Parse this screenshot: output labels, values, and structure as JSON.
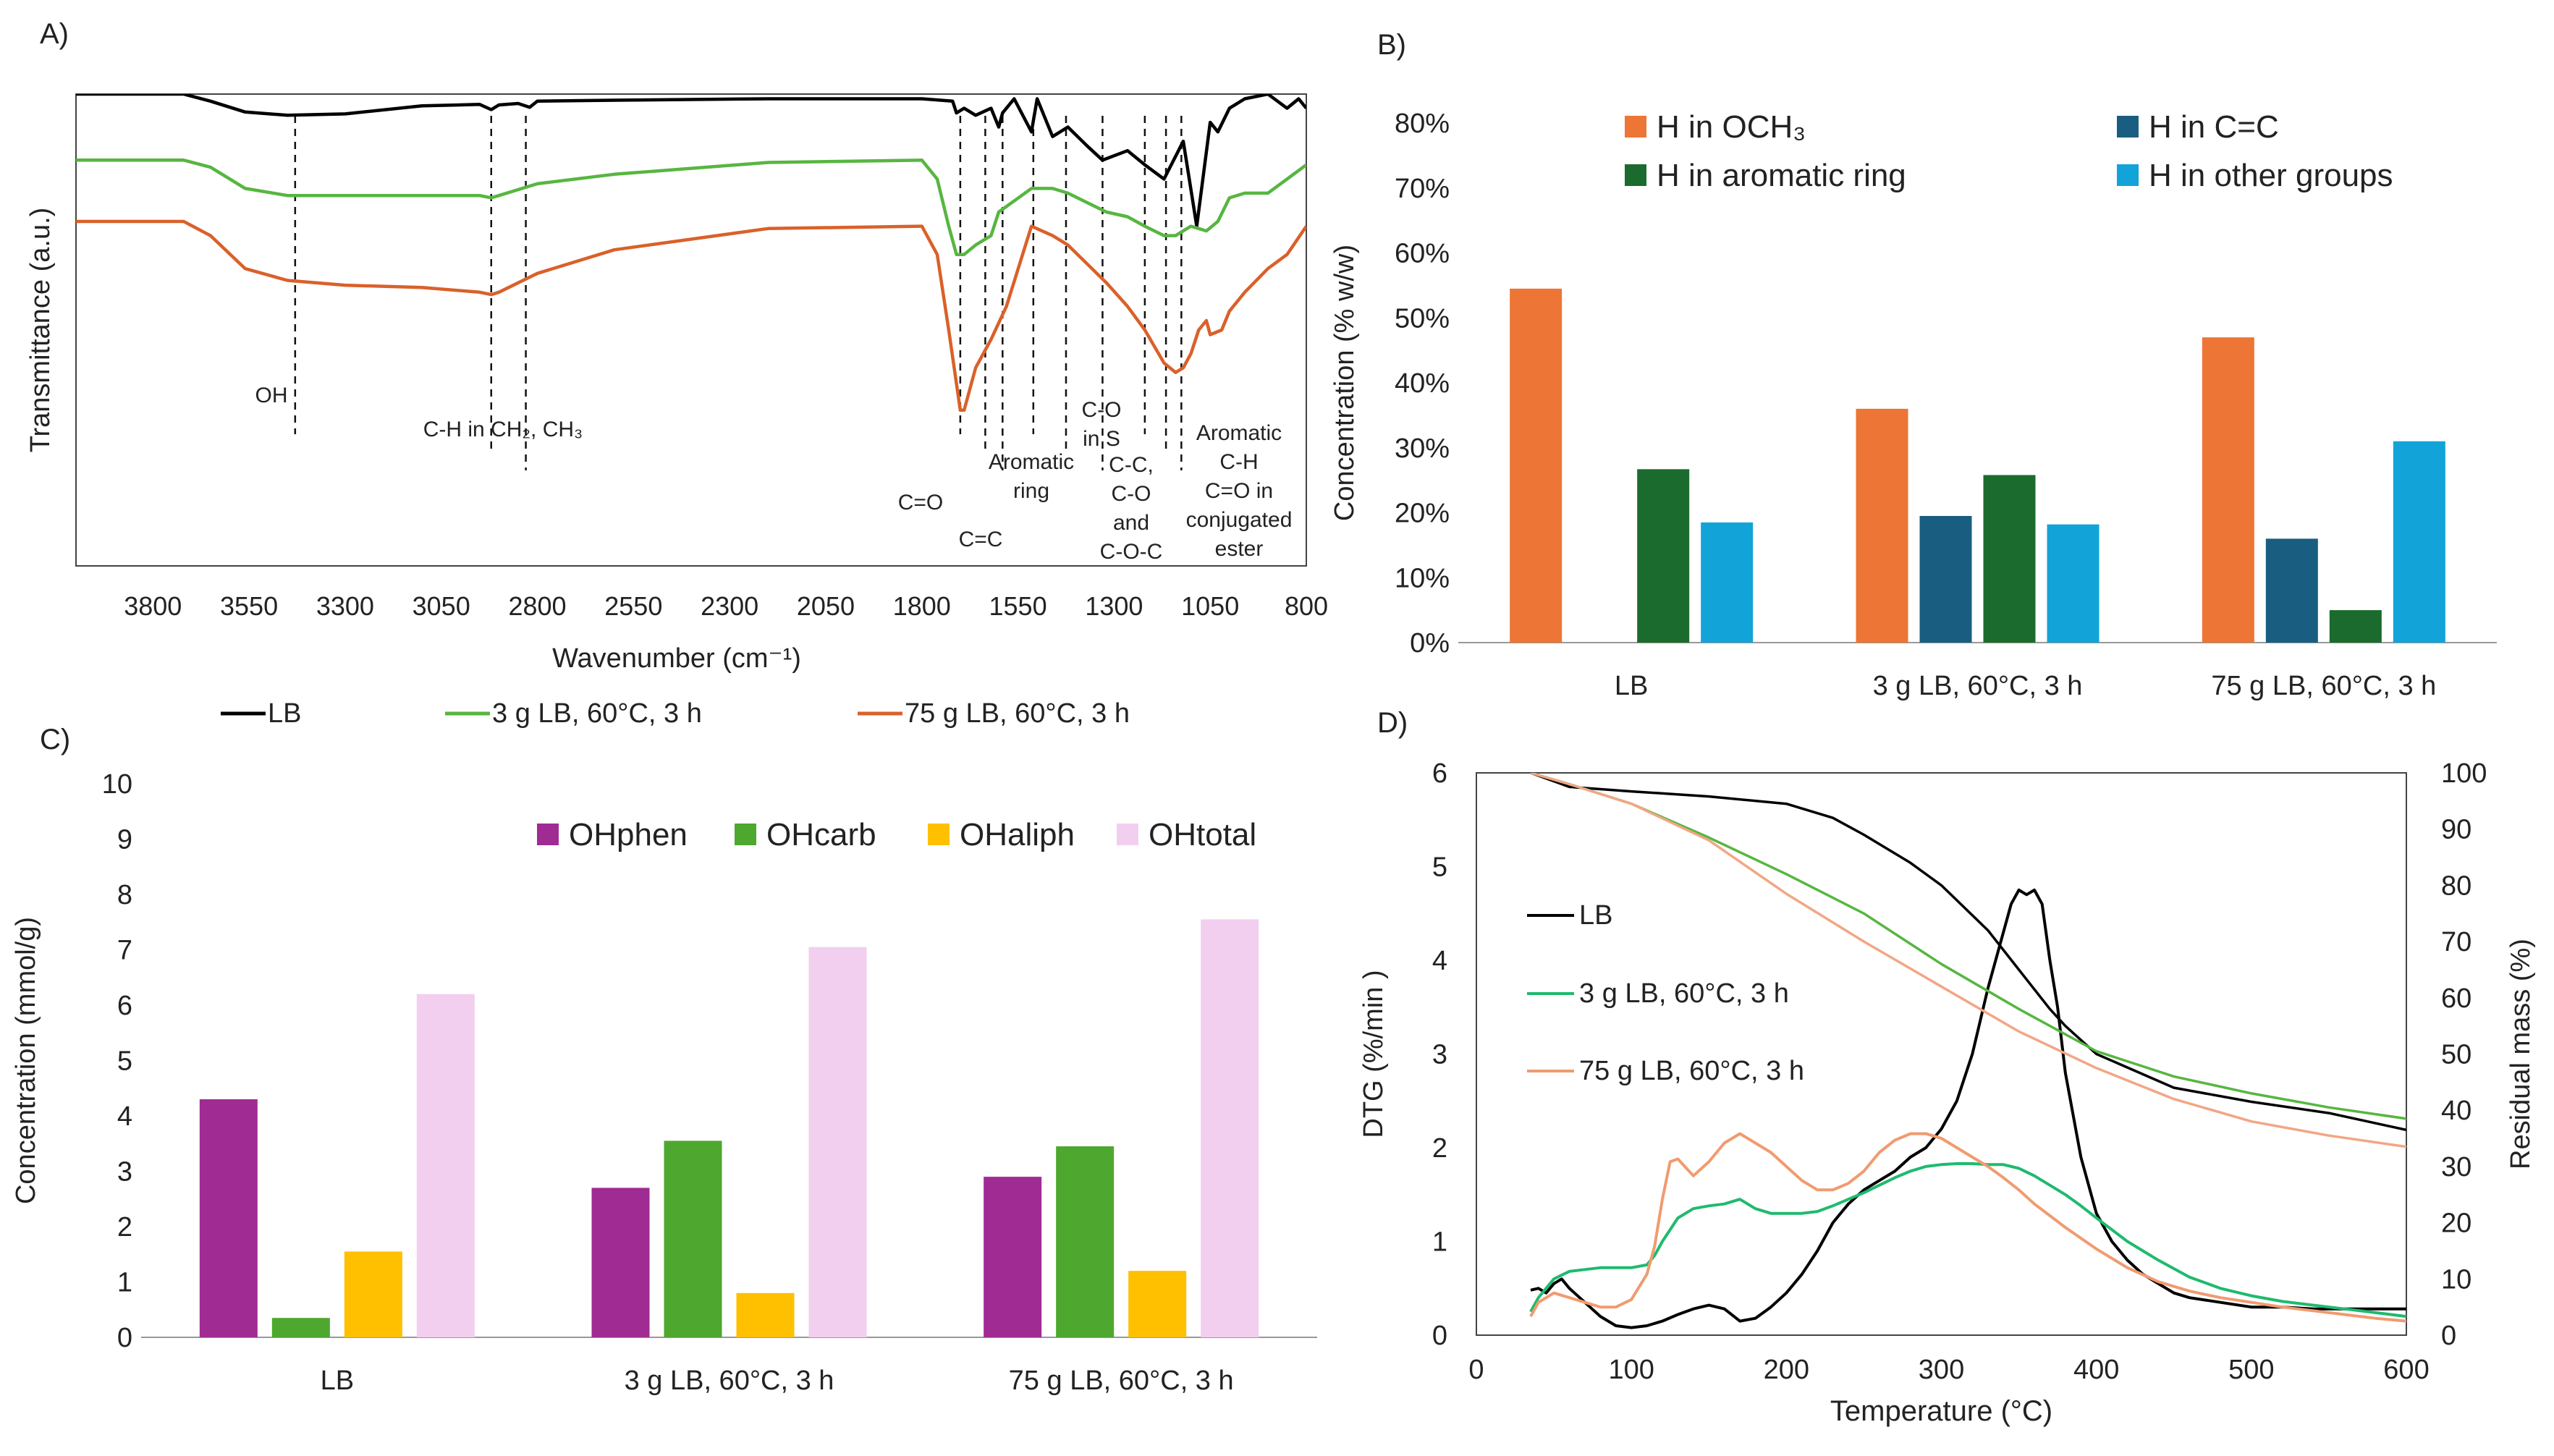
{
  "chart_data": [
    {
      "panel": "A)",
      "type": "line",
      "title": "",
      "xlabel": "Wavenumber (cm⁻¹)",
      "ylabel": "Transmittance (a.u.)",
      "xlim": [
        4000,
        800
      ],
      "x_ticks": [
        3800,
        3550,
        3300,
        3050,
        2800,
        2550,
        2300,
        2050,
        1800,
        1550,
        1300,
        1050,
        800
      ],
      "legend_position": "bottom",
      "series": [
        {
          "name": "LB",
          "color": "#000000",
          "x": [
            4000,
            3720,
            3650,
            3560,
            3450,
            3300,
            3100,
            2950,
            2920,
            2900,
            2850,
            2820,
            2800,
            2600,
            2200,
            1800,
            1720,
            1710,
            1690,
            1660,
            1620,
            1600,
            1590,
            1560,
            1515,
            1500,
            1460,
            1420,
            1370,
            1330,
            1265,
            1220,
            1170,
            1120,
            1085,
            1050,
            1030,
            1000,
            960,
            900,
            850,
            820,
            800
          ],
          "y": [
            1.0,
            1.0,
            0.985,
            0.962,
            0.955,
            0.958,
            0.975,
            0.978,
            0.967,
            0.977,
            0.98,
            0.972,
            0.985,
            0.987,
            0.99,
            0.99,
            0.985,
            0.96,
            0.97,
            0.955,
            0.97,
            0.93,
            0.96,
            0.99,
            0.92,
            0.99,
            0.91,
            0.93,
            0.89,
            0.86,
            0.88,
            0.85,
            0.82,
            0.9,
            0.72,
            0.94,
            0.92,
            0.97,
            0.99,
            1.0,
            0.97,
            0.99,
            0.97
          ]
        },
        {
          "name": "3 g LB, 60°C, 3 h",
          "color": "#57b641",
          "x": [
            4000,
            3720,
            3650,
            3560,
            3450,
            3300,
            3100,
            2950,
            2920,
            2900,
            2800,
            2600,
            2200,
            1800,
            1760,
            1730,
            1710,
            1690,
            1660,
            1620,
            1600,
            1515,
            1460,
            1420,
            1370,
            1320,
            1265,
            1220,
            1170,
            1140,
            1100,
            1060,
            1030,
            1000,
            960,
            900,
            850,
            800
          ],
          "y": [
            0.86,
            0.86,
            0.845,
            0.8,
            0.785,
            0.785,
            0.785,
            0.785,
            0.78,
            0.785,
            0.81,
            0.83,
            0.855,
            0.86,
            0.82,
            0.72,
            0.66,
            0.66,
            0.68,
            0.7,
            0.75,
            0.8,
            0.8,
            0.79,
            0.77,
            0.75,
            0.74,
            0.72,
            0.7,
            0.7,
            0.72,
            0.71,
            0.73,
            0.78,
            0.79,
            0.79,
            0.82,
            0.85
          ]
        },
        {
          "name": "75 g LB, 60°C, 3 h",
          "color": "#d9612a",
          "x": [
            4000,
            3720,
            3650,
            3560,
            3450,
            3300,
            3100,
            2950,
            2920,
            2900,
            2800,
            2600,
            2200,
            1800,
            1760,
            1730,
            1700,
            1690,
            1660,
            1620,
            1580,
            1515,
            1460,
            1420,
            1370,
            1320,
            1265,
            1220,
            1170,
            1140,
            1120,
            1100,
            1080,
            1060,
            1050,
            1020,
            1000,
            960,
            900,
            850,
            800
          ],
          "y": [
            0.73,
            0.73,
            0.7,
            0.63,
            0.605,
            0.595,
            0.59,
            0.58,
            0.575,
            0.58,
            0.62,
            0.67,
            0.715,
            0.72,
            0.66,
            0.5,
            0.33,
            0.33,
            0.42,
            0.48,
            0.55,
            0.72,
            0.7,
            0.68,
            0.64,
            0.6,
            0.55,
            0.5,
            0.43,
            0.41,
            0.42,
            0.45,
            0.5,
            0.52,
            0.49,
            0.5,
            0.54,
            0.58,
            0.63,
            0.66,
            0.72
          ]
        }
      ],
      "annotations": [
        {
          "wavenumber": 3430,
          "label_lines": [
            "OH"
          ]
        },
        {
          "wavenumber": 2920,
          "label_lines": [
            "C-H in CH₂, CH₃"
          ]
        },
        {
          "wavenumber": 2830,
          "label_lines": []
        },
        {
          "wavenumber": 1700,
          "label_lines": [
            "C=O"
          ]
        },
        {
          "wavenumber": 1635,
          "label_lines": [
            "C=C"
          ]
        },
        {
          "wavenumber": 1590,
          "label_lines": []
        },
        {
          "wavenumber": 1510,
          "label_lines": [
            "Aromatic",
            "ring"
          ]
        },
        {
          "wavenumber": 1425,
          "label_lines": []
        },
        {
          "wavenumber": 1330,
          "label_lines": [
            "C-O",
            "in S"
          ]
        },
        {
          "wavenumber": 1220,
          "label_lines": [
            "C-C,",
            "C-O",
            "and",
            "C-O-C"
          ]
        },
        {
          "wavenumber": 1165,
          "label_lines": []
        },
        {
          "wavenumber": 1125,
          "label_lines": [
            "Aromatic",
            "C-H",
            "C=O in",
            "conjugated",
            "ester"
          ]
        }
      ]
    },
    {
      "panel": "B)",
      "type": "bar",
      "title": "",
      "xlabel": "",
      "ylabel": "Concentration (% w/w)",
      "ylim": [
        0,
        80
      ],
      "y_ticks": [
        0,
        10,
        20,
        30,
        40,
        50,
        60,
        70,
        80
      ],
      "y_suffix": "%",
      "grid": false,
      "legend_position": "top",
      "categories": [
        "LB",
        "3 g LB, 60°C, 3 h",
        "75 g LB, 60°C, 3 h"
      ],
      "series": [
        {
          "name": "H in OCH₃",
          "color": "#ed7535",
          "values": [
            54.5,
            36.0,
            47.0
          ]
        },
        {
          "name": "H in C=C",
          "color": "#195e80",
          "values": [
            0,
            19.5,
            16.0
          ]
        },
        {
          "name": "H in aromatic ring",
          "color": "#1a6b2d",
          "values": [
            26.7,
            25.8,
            5.0
          ]
        },
        {
          "name": "H in other groups",
          "color": "#12a3d9",
          "values": [
            18.5,
            18.2,
            31.0
          ]
        }
      ]
    },
    {
      "panel": "C)",
      "type": "bar",
      "title": "",
      "xlabel": "",
      "ylabel": "Concentration (mmol/g)",
      "ylim": [
        0,
        10
      ],
      "y_ticks": [
        0,
        1,
        2,
        3,
        4,
        5,
        6,
        7,
        8,
        9,
        10
      ],
      "grid": false,
      "legend_position": "top",
      "categories": [
        "LB",
        "3 g LB, 60°C, 3 h",
        "75 g LB, 60°C, 3 h"
      ],
      "series": [
        {
          "name": "OHphen",
          "color": "#a02b93",
          "values": [
            4.3,
            2.7,
            2.9
          ]
        },
        {
          "name": "OHcarb",
          "color": "#4ea72e",
          "values": [
            0.35,
            3.55,
            3.45
          ]
        },
        {
          "name": "OHaliph",
          "color": "#ffc000",
          "values": [
            1.55,
            0.8,
            1.2
          ]
        },
        {
          "name": "OHtotal",
          "color": "#f2cfee",
          "values": [
            6.2,
            7.05,
            7.55
          ]
        }
      ]
    },
    {
      "panel": "D)",
      "type": "line",
      "title": "",
      "xlabel": "Temperature (°C)",
      "ylabel": "DTG (%/min )",
      "ylabel_right": "Residual mass (%)",
      "xlim": [
        0,
        600
      ],
      "ylim": [
        0,
        6
      ],
      "ylim_right": [
        0,
        100
      ],
      "x_ticks": [
        0,
        100,
        200,
        300,
        400,
        500,
        600
      ],
      "y_ticks": [
        0,
        1,
        2,
        3,
        4,
        5,
        6
      ],
      "y_ticks_right": [
        0,
        10,
        20,
        30,
        40,
        50,
        60,
        70,
        80,
        90,
        100
      ],
      "legend_position": "left",
      "series": [
        {
          "name": "LB",
          "color": "#000000",
          "role": "DTG",
          "x": [
            35,
            40,
            45,
            50,
            55,
            60,
            70,
            80,
            90,
            100,
            110,
            120,
            130,
            140,
            150,
            160,
            170,
            180,
            190,
            200,
            210,
            220,
            230,
            240,
            250,
            260,
            270,
            280,
            290,
            300,
            310,
            320,
            330,
            340,
            345,
            350,
            355,
            360,
            365,
            370,
            375,
            380,
            390,
            400,
            410,
            420,
            430,
            440,
            450,
            460,
            480,
            500,
            520,
            540,
            560,
            580,
            600
          ],
          "y": [
            0.48,
            0.5,
            0.45,
            0.55,
            0.6,
            0.5,
            0.35,
            0.2,
            0.1,
            0.08,
            0.1,
            0.15,
            0.22,
            0.28,
            0.32,
            0.28,
            0.15,
            0.18,
            0.3,
            0.45,
            0.65,
            0.9,
            1.2,
            1.4,
            1.55,
            1.65,
            1.75,
            1.9,
            2.0,
            2.2,
            2.5,
            3.0,
            3.7,
            4.3,
            4.6,
            4.75,
            4.7,
            4.75,
            4.6,
            4.0,
            3.5,
            2.8,
            1.9,
            1.3,
            1.0,
            0.8,
            0.65,
            0.55,
            0.45,
            0.4,
            0.35,
            0.3,
            0.3,
            0.28,
            0.28,
            0.28,
            0.28
          ]
        },
        {
          "name": "3 g LB, 60°C, 3 h",
          "color": "#1fba6e",
          "role": "DTG",
          "x": [
            35,
            40,
            50,
            60,
            70,
            80,
            90,
            100,
            110,
            115,
            120,
            130,
            140,
            150,
            160,
            170,
            180,
            190,
            200,
            210,
            220,
            230,
            240,
            250,
            260,
            270,
            280,
            290,
            300,
            310,
            320,
            330,
            340,
            350,
            360,
            370,
            380,
            390,
            400,
            420,
            440,
            460,
            480,
            500,
            520,
            540,
            560,
            580,
            600
          ],
          "y": [
            0.25,
            0.4,
            0.6,
            0.68,
            0.7,
            0.72,
            0.72,
            0.72,
            0.75,
            0.85,
            1.0,
            1.25,
            1.35,
            1.38,
            1.4,
            1.45,
            1.35,
            1.3,
            1.3,
            1.3,
            1.32,
            1.38,
            1.45,
            1.52,
            1.6,
            1.68,
            1.75,
            1.8,
            1.82,
            1.83,
            1.83,
            1.82,
            1.82,
            1.78,
            1.7,
            1.6,
            1.5,
            1.38,
            1.25,
            1.0,
            0.8,
            0.62,
            0.5,
            0.42,
            0.36,
            0.32,
            0.28,
            0.24,
            0.2
          ]
        },
        {
          "name": "75 g LB, 60°C, 3 h",
          "color": "#f09b70",
          "role": "DTG",
          "x": [
            35,
            40,
            50,
            60,
            70,
            80,
            90,
            100,
            110,
            115,
            120,
            125,
            130,
            140,
            150,
            160,
            170,
            180,
            190,
            200,
            210,
            220,
            230,
            240,
            250,
            260,
            270,
            280,
            290,
            300,
            310,
            320,
            330,
            340,
            350,
            360,
            380,
            400,
            420,
            440,
            460,
            480,
            500,
            520,
            540,
            560,
            580,
            600
          ],
          "y": [
            0.2,
            0.35,
            0.45,
            0.4,
            0.35,
            0.3,
            0.3,
            0.38,
            0.65,
            0.95,
            1.45,
            1.85,
            1.88,
            1.7,
            1.85,
            2.05,
            2.15,
            2.05,
            1.95,
            1.8,
            1.65,
            1.55,
            1.55,
            1.62,
            1.75,
            1.95,
            2.08,
            2.15,
            2.15,
            2.1,
            2.0,
            1.9,
            1.8,
            1.68,
            1.55,
            1.4,
            1.15,
            0.92,
            0.72,
            0.57,
            0.47,
            0.4,
            0.35,
            0.3,
            0.26,
            0.22,
            0.18,
            0.15
          ]
        },
        {
          "name": "LB",
          "color": "#000000",
          "role": "TG",
          "axis": "right",
          "x": [
            35,
            60,
            100,
            150,
            200,
            230,
            250,
            280,
            300,
            330,
            350,
            370,
            380,
            400,
            450,
            500,
            550,
            600
          ],
          "y": [
            100,
            97.5,
            96.7,
            95.8,
            94.5,
            92,
            89,
            84,
            80,
            72,
            65,
            58,
            55,
            50,
            44,
            41.5,
            39.5,
            36.5
          ]
        },
        {
          "name": "3 g LB, 60°C, 3 h",
          "color": "#57b641",
          "role": "TG",
          "axis": "right",
          "x": [
            35,
            60,
            100,
            150,
            200,
            250,
            300,
            350,
            400,
            450,
            500,
            550,
            600
          ],
          "y": [
            100,
            98,
            94.5,
            88.5,
            82,
            75,
            66,
            58,
            50.5,
            46,
            43,
            40.5,
            38.5
          ]
        },
        {
          "name": "75 g LB, 60°C, 3 h",
          "color": "#f2a685",
          "role": "TG",
          "axis": "right",
          "x": [
            35,
            60,
            100,
            150,
            200,
            250,
            300,
            350,
            400,
            450,
            500,
            550,
            600
          ],
          "y": [
            100,
            98,
            94.5,
            88,
            78.5,
            70,
            62,
            54,
            47.5,
            42,
            38,
            35.5,
            33.5
          ]
        }
      ]
    }
  ]
}
